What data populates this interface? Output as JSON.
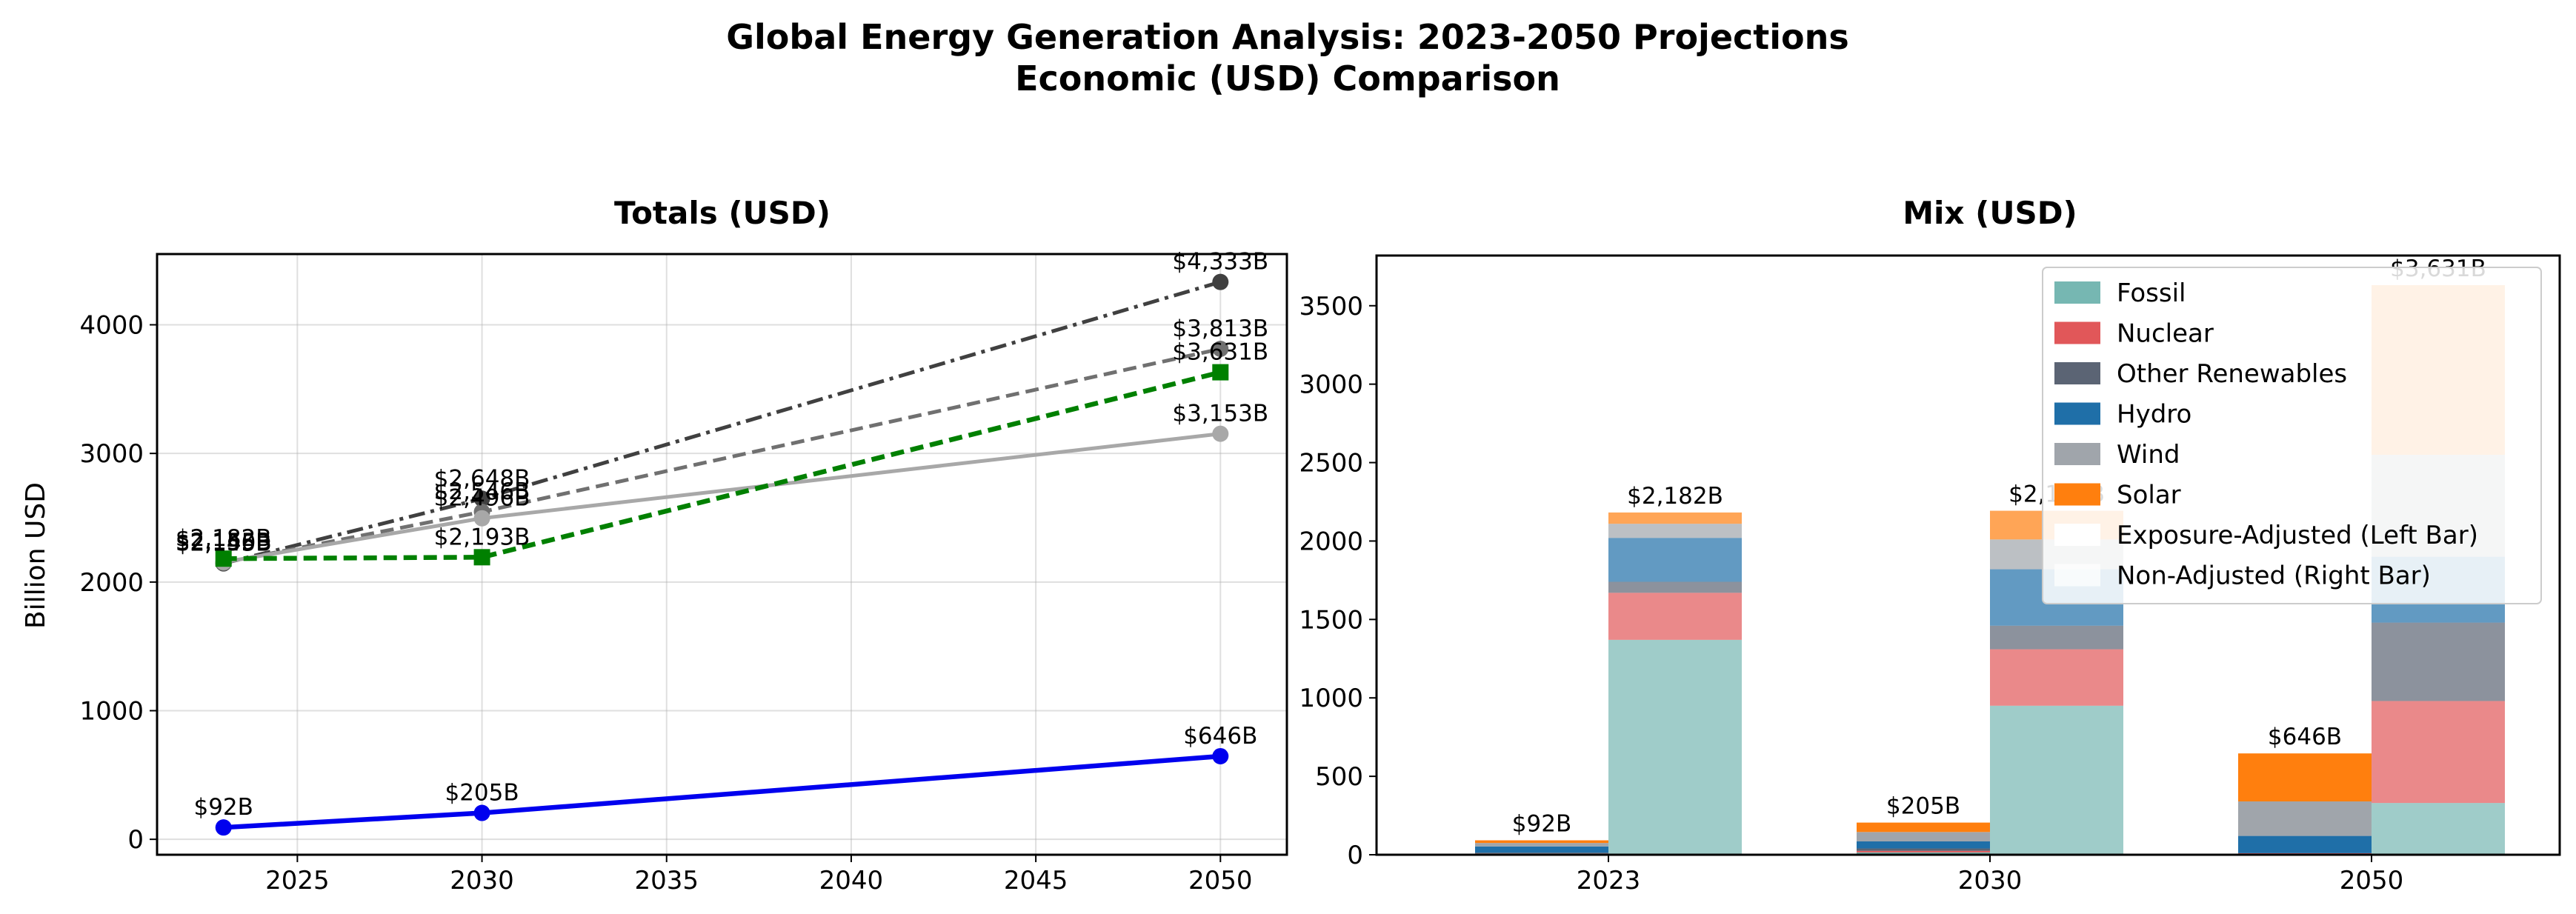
{
  "figure": {
    "title_line1": "Global Energy Generation Analysis: 2023-2050 Projections",
    "title_line2": "Economic (USD) Comparison"
  },
  "chart_data": [
    {
      "type": "line",
      "title": "Totals (USD)",
      "xlabel": "",
      "ylabel": "Billion USD",
      "xlim": [
        2021.2,
        2051.8
      ],
      "ylim": [
        -120,
        4550
      ],
      "xticks": [
        2025,
        2030,
        2035,
        2040,
        2045,
        2050
      ],
      "yticks": [
        0,
        1000,
        2000,
        3000,
        4000
      ],
      "grid": true,
      "x": [
        2023,
        2030,
        2050
      ],
      "series": [
        {
          "values": [
            2145,
            2648,
            4333
          ],
          "color": "#404040",
          "dash": "dashdot",
          "marker": "circle",
          "labels": [
            "$2,145B",
            "$2,648B",
            "$4,333B"
          ]
        },
        {
          "values": [
            2150,
            2546,
            3813
          ],
          "color": "#707070",
          "dash": "dashed",
          "marker": "circle",
          "labels": [
            "$2,150B",
            "$2,546B",
            "$3,813B"
          ]
        },
        {
          "values": [
            2155,
            2496,
            3153
          ],
          "color": "#a8a8a8",
          "dash": "solid",
          "marker": "circle",
          "labels": [
            "$2,155B",
            "$2,496B",
            "$3,153B"
          ]
        },
        {
          "values": [
            2182,
            2193,
            3631
          ],
          "color": "#008000",
          "dash": "dashed",
          "marker": "square",
          "labels": [
            "$2,182B",
            "$2,193B",
            "$3,631B"
          ]
        },
        {
          "values": [
            92,
            205,
            646
          ],
          "color": "#0000ee",
          "dash": "solid",
          "marker": "circle",
          "labels": [
            "$92B",
            "$205B",
            "$646B"
          ]
        }
      ]
    },
    {
      "type": "bar",
      "title": "Mix (USD)",
      "xlabel": "",
      "ylabel": "",
      "ylim": [
        0,
        3820
      ],
      "yticks": [
        0,
        500,
        1000,
        1500,
        2000,
        2500,
        3000,
        3500
      ],
      "categories": [
        "2023",
        "2030",
        "2050"
      ],
      "layers": [
        "Fossil",
        "Nuclear",
        "Other Renewables",
        "Hydro",
        "Wind",
        "Solar"
      ],
      "layer_colors": [
        "#76b7b2",
        "#e15759",
        "#5b6474",
        "#1f6fa8",
        "#a0a5ab",
        "#ff7f0e"
      ],
      "left_bars": {
        "alpha": 1.0,
        "values": [
          [
            5,
            3,
            5,
            40,
            22,
            17
          ],
          [
            15,
            10,
            15,
            45,
            60,
            60
          ],
          [
            0,
            10,
            0,
            110,
            220,
            306
          ]
        ],
        "totals": [
          "$92B",
          "$205B",
          "$646B"
        ]
      },
      "right_bars": {
        "alpha": 0.7,
        "values": [
          [
            1370,
            300,
            70,
            280,
            90,
            72
          ],
          [
            950,
            360,
            150,
            360,
            190,
            183
          ],
          [
            330,
            650,
            500,
            420,
            650,
            1081
          ]
        ],
        "totals": [
          "$2,182B",
          "$2,193B",
          "$3,631B"
        ]
      },
      "legend": {
        "placement": "top-right",
        "entries": [
          {
            "label": "Fossil",
            "color": "#76b7b2",
            "alpha": 1.0
          },
          {
            "label": "Nuclear",
            "color": "#e15759",
            "alpha": 1.0
          },
          {
            "label": "Other Renewables",
            "color": "#5b6474",
            "alpha": 1.0
          },
          {
            "label": "Hydro",
            "color": "#1f6fa8",
            "alpha": 1.0
          },
          {
            "label": "Wind",
            "color": "#a0a5ab",
            "alpha": 1.0
          },
          {
            "label": "Solar",
            "color": "#ff7f0e",
            "alpha": 1.0
          },
          {
            "label": "Exposure-Adjusted (Left Bar)",
            "color": "#ffffff",
            "alpha": 1.0
          },
          {
            "label": "Non-Adjusted (Right Bar)",
            "color": "#ffffff",
            "alpha": 0.7
          }
        ]
      }
    }
  ]
}
